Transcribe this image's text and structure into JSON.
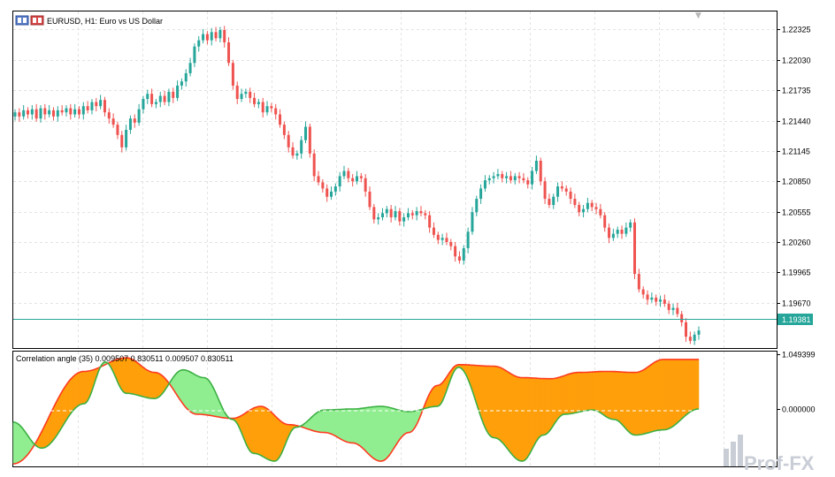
{
  "window": {
    "title": "EURUSD, H1:  Euro vs US Dollar"
  },
  "indicator": {
    "title": "Correlation angle (35) 0.009507 0.830511 0.009507 0.830511",
    "axis_labels": [
      "1.049399",
      "0.000000"
    ]
  },
  "watermark": {
    "text": "Prof-FX"
  },
  "colors": {
    "bull": "#26a69a",
    "bear": "#ef5350",
    "price_line": "#26a69a",
    "price_label_bg": "#26a69a",
    "fill_orange": "#ff9f0a",
    "fill_green": "#90ee90",
    "line_red": "#ff3b1f",
    "line_green": "#3cb043",
    "grid": "#e3e3e3"
  },
  "chart_data": [
    {
      "type": "candlestick",
      "symbol": "EURUSD",
      "timeframe": "H1",
      "ylim": [
        1.1923,
        1.225
      ],
      "yticks": [
        "1.22325",
        "1.22030",
        "1.21735",
        "1.21440",
        "1.21145",
        "1.20850",
        "1.20555",
        "1.20260",
        "1.19965",
        "1.19670"
      ],
      "current_price": "1.19381",
      "grid": true,
      "close": [
        1.2152,
        1.2148,
        1.2154,
        1.215,
        1.2155,
        1.2146,
        1.2156,
        1.215,
        1.2154,
        1.2148,
        1.2154,
        1.2152,
        1.2156,
        1.215,
        1.2155,
        1.215,
        1.2158,
        1.2154,
        1.2162,
        1.2158,
        1.2164,
        1.2152,
        1.2146,
        1.214,
        1.213,
        1.2118,
        1.2135,
        1.2146,
        1.2142,
        1.2155,
        1.2165,
        1.217,
        1.216,
        1.2162,
        1.2168,
        1.2162,
        1.2172,
        1.2166,
        1.2178,
        1.2182,
        1.219,
        1.22,
        1.2216,
        1.2222,
        1.2228,
        1.2222,
        1.223,
        1.2224,
        1.2232,
        1.222,
        1.22,
        1.2178,
        1.2165,
        1.217,
        1.2172,
        1.2166,
        1.216,
        1.2162,
        1.2152,
        1.2158,
        1.2156,
        1.215,
        1.214,
        1.213,
        1.2118,
        1.211,
        1.2112,
        1.2125,
        1.2138,
        1.2112,
        1.209,
        1.2084,
        1.2078,
        1.207,
        1.2075,
        1.208,
        1.209,
        1.2095,
        1.2088,
        1.2085,
        1.209,
        1.2088,
        1.2075,
        1.206,
        1.2048,
        1.205,
        1.2054,
        1.2058,
        1.205,
        1.2056,
        1.2046,
        1.205,
        1.2054,
        1.2052,
        1.2056,
        1.2054,
        1.2052,
        1.204,
        1.2033,
        1.2028,
        1.203,
        1.2026,
        1.2022,
        1.2012,
        1.2008,
        1.202,
        1.2036,
        1.2055,
        1.2068,
        1.2078,
        1.2086,
        1.2088,
        1.209,
        1.2092,
        1.2088,
        1.209,
        1.2086,
        1.209,
        1.2088,
        1.2086,
        1.2082,
        1.2095,
        1.2105,
        1.2085,
        1.2068,
        1.2062,
        1.207,
        1.208,
        1.2078,
        1.2075,
        1.2068,
        1.2062,
        1.2055,
        1.2058,
        1.2064,
        1.206,
        1.2058,
        1.2052,
        1.204,
        1.203,
        1.2034,
        1.2038,
        1.2034,
        1.204,
        1.2045,
        1.1995,
        1.198,
        1.1975,
        1.197,
        1.1972,
        1.1968,
        1.197,
        1.1966,
        1.196,
        1.1962,
        1.1956,
        1.1948,
        1.1934,
        1.193,
        1.1936,
        1.194
      ],
      "series": [
        {
          "name": "",
          "x": [
            0,
            10,
            16,
            20,
            26,
            31,
            35,
            39,
            44,
            48,
            52,
            56,
            60,
            63,
            68,
            72,
            76,
            80,
            84,
            88,
            92,
            97
          ],
          "y": [
            -1.05,
            0.72,
            0.98,
            0.7,
            -0.1,
            -0.18,
            0.05,
            -0.3,
            -0.45,
            -0.65,
            -1.0,
            -0.45,
            0.45,
            0.85,
            0.82,
            0.6,
            0.58,
            0.7,
            0.72,
            0.7,
            0.95,
            0.95
          ]
        },
        {
          "name": "",
          "x": [
            0,
            4,
            10,
            13,
            16,
            20,
            24,
            27,
            31,
            34,
            37,
            40,
            44,
            48,
            52,
            56,
            60,
            63,
            68,
            72,
            75,
            78,
            82,
            85,
            88,
            92,
            97
          ],
          "y": [
            -0.25,
            -0.75,
            0.1,
            0.9,
            0.3,
            0.2,
            0.75,
            0.6,
            -0.2,
            -0.85,
            -1.0,
            -0.35,
            -0.02,
            0.0,
            0.05,
            -0.05,
            0.05,
            0.8,
            -0.55,
            -1.0,
            -0.5,
            -0.1,
            -0.02,
            -0.2,
            -0.5,
            -0.4,
            0.0
          ]
        }
      ],
      "indicator_ylim": [
        -1.1,
        1.1
      ],
      "indicator_yticks": [
        "1.049399",
        "0.000000"
      ]
    }
  ]
}
